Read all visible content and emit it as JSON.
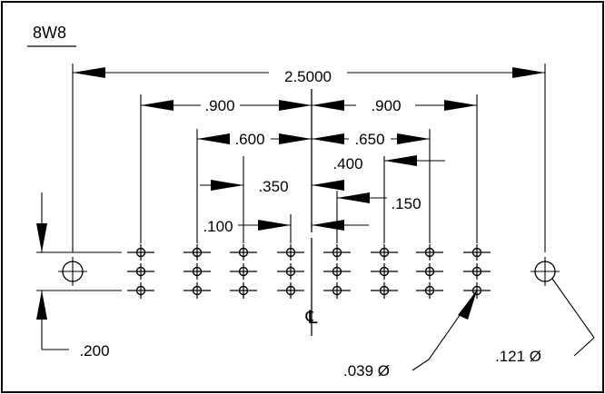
{
  "part_label": "8W8",
  "dimensions": {
    "overall": "2.5000",
    "left_outer": ".900",
    "right_outer": ".900",
    "left_mid": ".600",
    "right_mid": ".650",
    "right_inner": ".400",
    "left_inner": ".350",
    "right_near": ".150",
    "left_near": ".100",
    "row_pitch": ".200"
  },
  "centerline_symbol": "℄",
  "callouts": {
    "small_hole": ".039 Ø",
    "mount_hole": ".121 Ø"
  }
}
